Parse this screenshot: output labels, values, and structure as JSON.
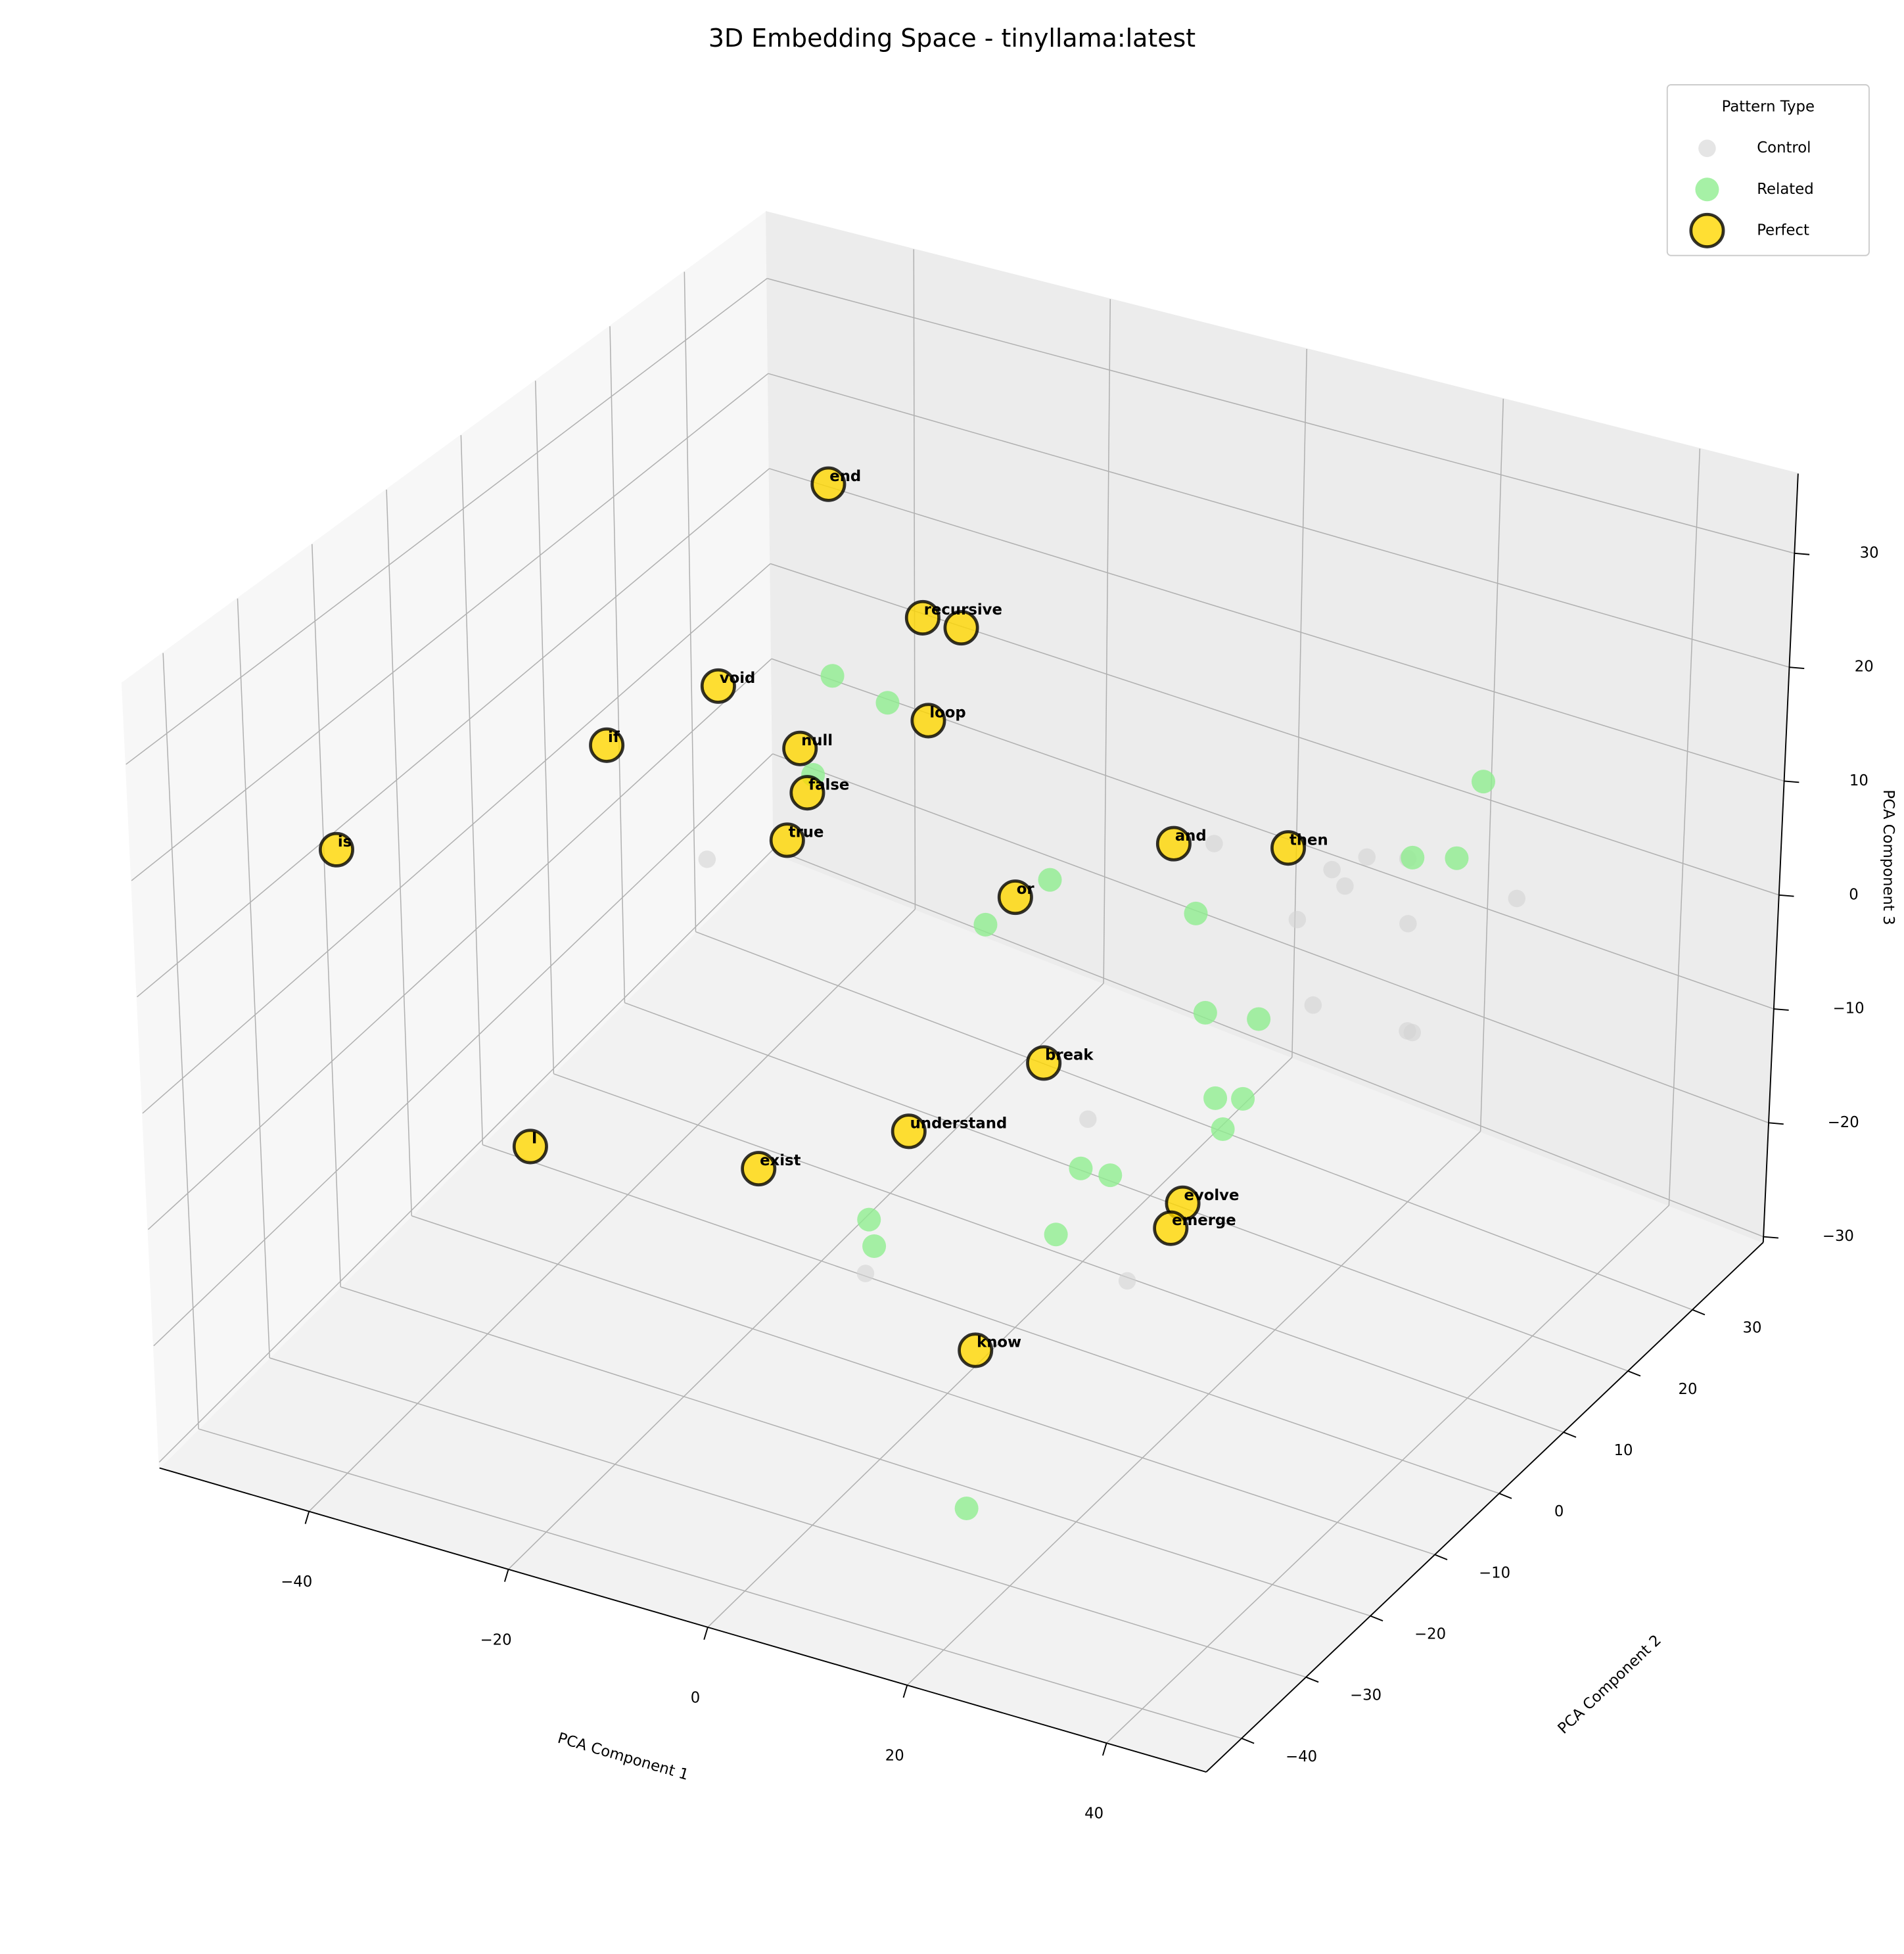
{
  "chart_data": {
    "type": "scatter3d",
    "title": "3D Embedding Space - tinyllama:latest",
    "xlabel": "PCA Component 1",
    "ylabel": "PCA Component 2",
    "zlabel": "PCA Component 3",
    "xlim": [
      -55,
      50
    ],
    "ylim": [
      -45.5,
      41
    ],
    "zlim": [
      -30.5,
      37
    ],
    "xticks": [
      {
        "value": -40,
        "label": "−40"
      },
      {
        "value": -20,
        "label": "−20"
      },
      0,
      20,
      40
    ],
    "yticks": [
      {
        "value": -40,
        "label": "−40"
      },
      {
        "value": -30,
        "label": "−30"
      },
      {
        "value": -20,
        "label": "−20"
      },
      {
        "value": -10,
        "label": "−10"
      },
      0,
      10,
      20,
      30
    ],
    "zticks": [
      {
        "value": -30,
        "label": "−30"
      },
      {
        "value": -20,
        "label": "−20"
      },
      {
        "value": -10,
        "label": "−10"
      },
      0,
      10,
      20,
      30
    ],
    "grid": true,
    "legend": "upper right",
    "legend_title": "Pattern Type",
    "series": [
      {
        "name": "Control",
        "color": "#d3d3d3",
        "x": [
          -42.4,
          3.6,
          16.3,
          20.5,
          15.7,
          20.0,
          28.8,
          15.2,
          23.6,
          19.9,
          23.8,
          24.3,
          9.0,
          -1.6,
          13.1
        ],
        "y": [
          15.1,
          23.7,
          28.0,
          28.0,
          23.7,
          19.4,
          32.4,
          19.4,
          23.7,
          15.1,
          23.7,
          23.7,
          -2.3,
          -19.6,
          -2.3
        ],
        "z": [
          -9.1,
          0.5,
          0.5,
          1.5,
          1.4,
          3.2,
          -2.0,
          -1.0,
          -1.3,
          -5.1,
          -10.7,
          -10.7,
          -8.9,
          -15.6,
          -21.6
        ]
      },
      {
        "name": "Related",
        "color": "#90ee90",
        "x": [
          -29.3,
          -23.7,
          -25.0,
          -1.0,
          4.6,
          13.8,
          20.8,
          20.3,
          21.9,
          18.8,
          22.7,
          14.2,
          11.3,
          -1.2,
          -0.7,
          11.7,
          20.3,
          28.0,
          23.9,
          28.4
        ],
        "y": [
          15.1,
          15.1,
          6.4,
          6.4,
          -10.9,
          6.4,
          -2.3,
          6.4,
          -2.3,
          6.4,
          -2.3,
          -10.9,
          -2.3,
          -19.6,
          -19.6,
          -10.9,
          -36.9,
          28.0,
          23.7,
          23.7
        ],
        "z": [
          12.0,
          10.9,
          8.6,
          5.0,
          10.8,
          5.6,
          2.9,
          -1.9,
          -4.0,
          -9.1,
          -6.4,
          -7.5,
          -13.1,
          -11.0,
          -13.1,
          -13.6,
          -20.9,
          10.3,
          4.6,
          5.7
        ]
      },
      {
        "name": "Perfect",
        "color": "#ffd700",
        "edgecolor": "#000000",
        "labels": [
          "end",
          "recursive",
          null,
          "void",
          "loop",
          "if",
          "null",
          "false",
          "true",
          "is",
          "or",
          "and",
          "then",
          "break",
          "understand",
          "I",
          "exist",
          "evolve",
          "emerge",
          "know"
        ],
        "x": [
          -35.9,
          -20.1,
          -16.2,
          -34.5,
          -13.3,
          -33.1,
          -26.3,
          -25.6,
          -27.7,
          -41.1,
          1.6,
          11.5,
          17.1,
          4.5,
          -3.2,
          -29.1,
          -12.3,
          18.7,
          17.5,
          9.5
        ],
        "y": [
          23.7,
          15.1,
          15.1,
          6.4,
          6.4,
          -10.9,
          6.4,
          6.4,
          6.4,
          -36.9,
          -2.3,
          6.4,
          15.1,
          -2.3,
          -10.9,
          -28.2,
          -19.6,
          -2.3,
          -2.3,
          -19.6
        ],
        "z": [
          24.0,
          19.7,
          19.7,
          14.5,
          16.3,
          18.5,
          10.7,
          6.8,
          1.9,
          20.8,
          8.4,
          11.1,
          7.9,
          -5.2,
          -8.5,
          -6.7,
          -9.3,
          -13.6,
          -16.0,
          -19.3
        ]
      }
    ]
  }
}
